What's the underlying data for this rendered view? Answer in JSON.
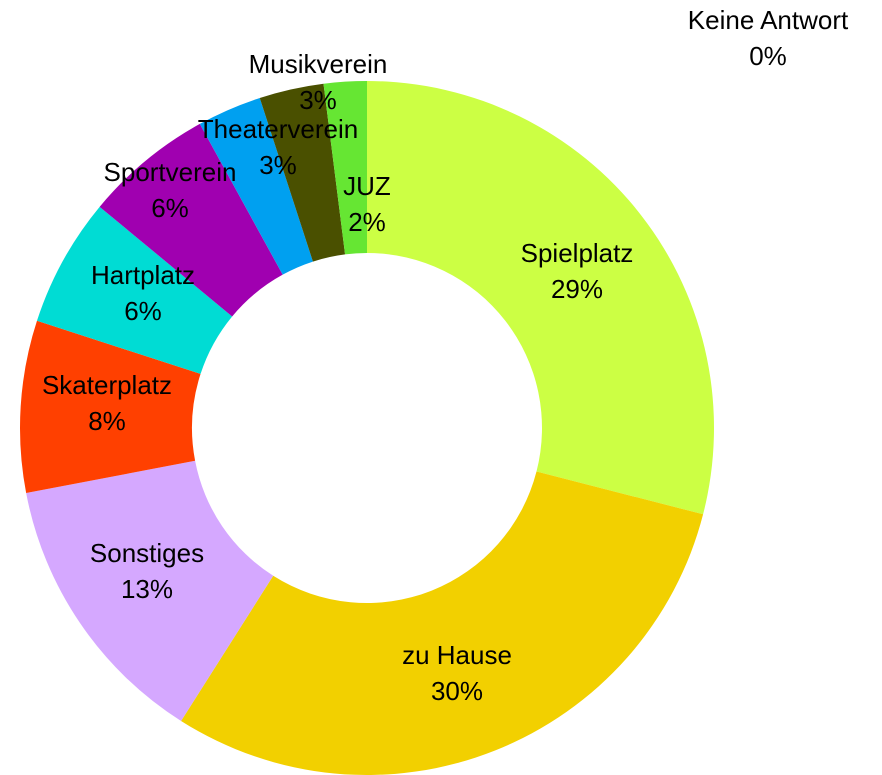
{
  "chart_data": {
    "type": "donut",
    "categories": [
      "Keine Antwort",
      "Spielplatz",
      "zu Hause",
      "Sonstiges",
      "Skaterplatz",
      "Hartplatz",
      "Sportverein",
      "Theaterverein",
      "Musikverein",
      "JUZ"
    ],
    "values": [
      0,
      29,
      30,
      13,
      8,
      6,
      6,
      3,
      3,
      2
    ],
    "value_labels": [
      "0%",
      "29%",
      "30%",
      "13%",
      "8%",
      "6%",
      "6%",
      "3%",
      "3%",
      "2%"
    ],
    "colors": [
      "#3366ff",
      "#ccff44",
      "#f2d000",
      "#d5a8ff",
      "#ff4000",
      "#00dcd4",
      "#a000b0",
      "#00a0f0",
      "#4a5000",
      "#66e633"
    ]
  }
}
